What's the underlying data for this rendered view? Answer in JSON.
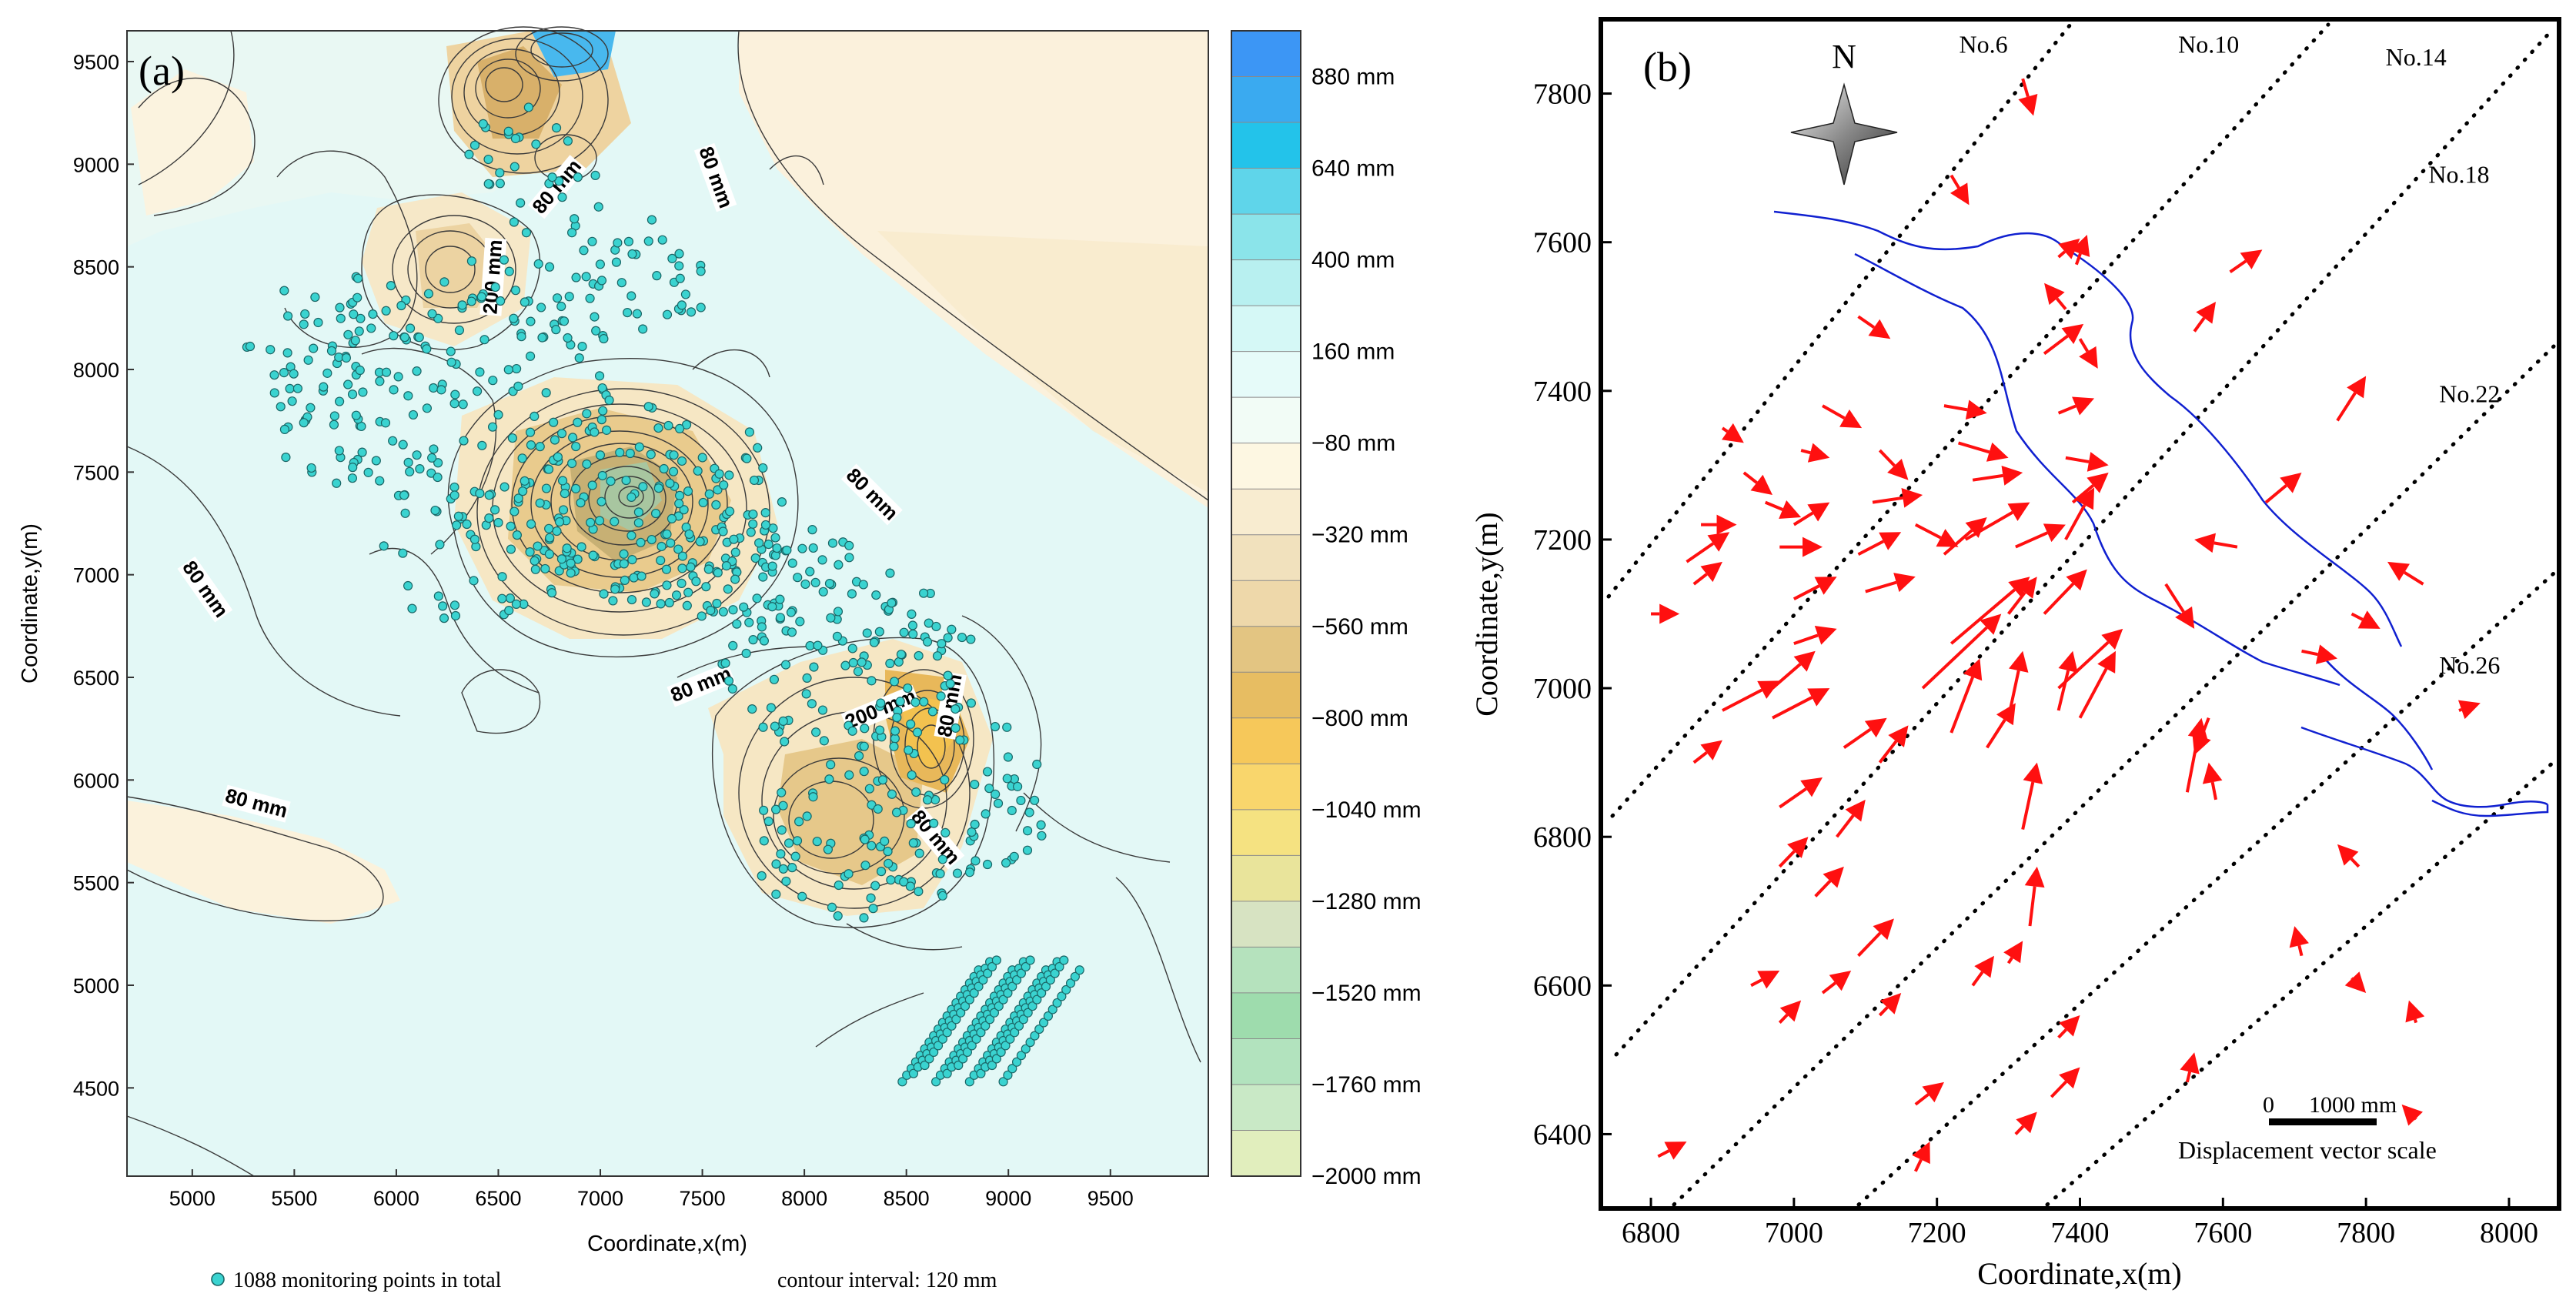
{
  "chart_data": [
    {
      "type": "contour",
      "panel_label": "(a)",
      "xlabel": "Coordinate,x(m)",
      "ylabel": "Coordinate,y(m)",
      "xlim": [
        4680,
        9980
      ],
      "ylim": [
        4070,
        9650
      ],
      "xticks": [
        5000,
        5500,
        6000,
        6500,
        7000,
        7500,
        8000,
        8500,
        9000,
        9500
      ],
      "yticks": [
        4500,
        5000,
        5500,
        6000,
        6500,
        7000,
        7500,
        8000,
        8500,
        9000,
        9500
      ],
      "contour_labels": [
        {
          "text": "80 mm",
          "x": 6800,
          "y": 8880,
          "angle": -50
        },
        {
          "text": "80 mm",
          "x": 7550,
          "y": 8930,
          "angle": 70
        },
        {
          "text": "200 mm",
          "x": 6490,
          "y": 8450,
          "angle": -86
        },
        {
          "text": "80 mm",
          "x": 5050,
          "y": 6920,
          "angle": 55
        },
        {
          "text": "80 mm",
          "x": 8320,
          "y": 7380,
          "angle": 45
        },
        {
          "text": "80 mm",
          "x": 7500,
          "y": 6450,
          "angle": -22
        },
        {
          "text": "200 mm",
          "x": 8380,
          "y": 6330,
          "angle": -22
        },
        {
          "text": "80 mm",
          "x": 8730,
          "y": 6360,
          "angle": -80
        },
        {
          "text": "80 mm",
          "x": 5310,
          "y": 5870,
          "angle": 15
        },
        {
          "text": "80 mm",
          "x": 8630,
          "y": 5710,
          "angle": 50
        }
      ],
      "colorbar": {
        "labels": [
          "880 mm",
          "640 mm",
          "400 mm",
          "160 mm",
          "−80 mm",
          "−320 mm",
          "−560 mm",
          "−800 mm",
          "−1040 mm",
          "−1280 mm",
          "−1520 mm",
          "−1760 mm",
          "−2000 mm"
        ],
        "colors": [
          "#3c96f5",
          "#3aaaf0",
          "#23c3ea",
          "#5fd5ea",
          "#8be4ea",
          "#b8f0f0",
          "#d5f8f6",
          "#e6fbf9",
          "#f2fcf6",
          "#fdf7e2",
          "#f8ecd0",
          "#f1e1bd",
          "#eed8aa",
          "#e3c582",
          "#e7bd62",
          "#f6c85a",
          "#f9d66c",
          "#f5e281",
          "#e9e49b",
          "#d7e3c2",
          "#b5e2bd",
          "#9edcad",
          "#b2e3be",
          "#c9e9c6",
          "#e1eebd"
        ]
      },
      "footer_points_label": "1088 monitoring points in total",
      "footer_interval_label": "contour interval:  120 mm"
    },
    {
      "type": "vector_field",
      "panel_label": "(b)",
      "xlabel": "Coordinate,x(m)",
      "ylabel": "Coordinate,y(m)",
      "xlim": [
        6730,
        8070
      ],
      "ylim": [
        6300,
        7900
      ],
      "xticks": [
        6800,
        7000,
        7200,
        7400,
        7600,
        7800,
        8000
      ],
      "yticks": [
        6400,
        6600,
        6800,
        7000,
        7200,
        7400,
        7600,
        7800
      ],
      "north_label": "N",
      "line_labels": [
        {
          "text": "No.6",
          "x": 7265,
          "y": 7855
        },
        {
          "text": "No.10",
          "x": 7580,
          "y": 7855
        },
        {
          "text": "No.14",
          "x": 7870,
          "y": 7838
        },
        {
          "text": "No.18",
          "x": 7930,
          "y": 7680
        },
        {
          "text": "No.22",
          "x": 7945,
          "y": 7385
        },
        {
          "text": "No.26",
          "x": 7945,
          "y": 7020
        }
      ],
      "scale_bar_label": "0      1000 mm",
      "scale_bar_caption": "Displacement vector scale",
      "vectors": [
        [
          7320,
          7820,
          7335,
          7770
        ],
        [
          7220,
          7690,
          7245,
          7650
        ],
        [
          7370,
          7580,
          7400,
          7605
        ],
        [
          7395,
          7570,
          7410,
          7610
        ],
        [
          7380,
          7510,
          7350,
          7545
        ],
        [
          7610,
          7560,
          7655,
          7590
        ],
        [
          7560,
          7480,
          7590,
          7520
        ],
        [
          7090,
          7500,
          7135,
          7470
        ],
        [
          7350,
          7450,
          7405,
          7490
        ],
        [
          7400,
          7470,
          7425,
          7430
        ],
        [
          7210,
          7380,
          7270,
          7370
        ],
        [
          7370,
          7370,
          7420,
          7390
        ],
        [
          7040,
          7380,
          7095,
          7350
        ],
        [
          7230,
          7330,
          7300,
          7310
        ],
        [
          7380,
          7310,
          7440,
          7300
        ],
        [
          7760,
          7360,
          7800,
          7420
        ],
        [
          6900,
          7350,
          6930,
          7330
        ],
        [
          7010,
          7320,
          7050,
          7310
        ],
        [
          7120,
          7320,
          7160,
          7280
        ],
        [
          7250,
          7280,
          7320,
          7290
        ],
        [
          7390,
          7250,
          7440,
          7290
        ],
        [
          7660,
          7250,
          7710,
          7290
        ],
        [
          6930,
          7290,
          6970,
          7260
        ],
        [
          6960,
          7250,
          7010,
          7230
        ],
        [
          7000,
          7220,
          7050,
          7250
        ],
        [
          7110,
          7250,
          7180,
          7260
        ],
        [
          7170,
          7220,
          7230,
          7190
        ],
        [
          7210,
          7180,
          7270,
          7230
        ],
        [
          7240,
          7200,
          7330,
          7250
        ],
        [
          7380,
          7200,
          7420,
          7270
        ],
        [
          6870,
          7220,
          6920,
          7220
        ],
        [
          6980,
          7190,
          7040,
          7190
        ],
        [
          7090,
          7180,
          7150,
          7210
        ],
        [
          7310,
          7190,
          7380,
          7220
        ],
        [
          7620,
          7190,
          7560,
          7200
        ],
        [
          6850,
          7170,
          6910,
          7210
        ],
        [
          6860,
          7140,
          6900,
          7170
        ],
        [
          7100,
          7130,
          7170,
          7150
        ],
        [
          7300,
          7100,
          7340,
          7150
        ],
        [
          7350,
          7100,
          7410,
          7160
        ],
        [
          7880,
          7140,
          7830,
          7170
        ],
        [
          6800,
          7100,
          6840,
          7100
        ],
        [
          7000,
          7120,
          7060,
          7150
        ],
        [
          7000,
          7060,
          7060,
          7080
        ],
        [
          7220,
          7060,
          7330,
          7150
        ],
        [
          7520,
          7140,
          7560,
          7080
        ],
        [
          7780,
          7100,
          7820,
          7080
        ],
        [
          6970,
          7000,
          7030,
          7050
        ],
        [
          7180,
          7000,
          7290,
          7100
        ],
        [
          7370,
          7000,
          7460,
          7080
        ],
        [
          7710,
          7050,
          7760,
          7040
        ],
        [
          6900,
          6970,
          6980,
          7010
        ],
        [
          6970,
          6960,
          7050,
          7000
        ],
        [
          7220,
          6940,
          7260,
          7040
        ],
        [
          7300,
          6960,
          7320,
          7050
        ],
        [
          7370,
          6970,
          7390,
          7050
        ],
        [
          7400,
          6960,
          7450,
          7050
        ],
        [
          7930,
          6970,
          7960,
          6980
        ],
        [
          6860,
          6900,
          6900,
          6930
        ],
        [
          7070,
          6920,
          7130,
          6960
        ],
        [
          7120,
          6900,
          7160,
          6950
        ],
        [
          7270,
          6920,
          7310,
          6980
        ],
        [
          7580,
          6960,
          7560,
          6910
        ],
        [
          6980,
          6840,
          7040,
          6880
        ],
        [
          7060,
          6800,
          7100,
          6850
        ],
        [
          7320,
          6810,
          7340,
          6900
        ],
        [
          7550,
          6860,
          7570,
          6960
        ],
        [
          7590,
          6850,
          7580,
          6900
        ],
        [
          6980,
          6760,
          7020,
          6800
        ],
        [
          7030,
          6720,
          7070,
          6760
        ],
        [
          7790,
          6760,
          7760,
          6790
        ],
        [
          7330,
          6680,
          7340,
          6760
        ],
        [
          7090,
          6640,
          7140,
          6690
        ],
        [
          7300,
          6630,
          7320,
          6660
        ],
        [
          7710,
          6640,
          7700,
          6680
        ],
        [
          6940,
          6600,
          6980,
          6620
        ],
        [
          7040,
          6590,
          7080,
          6620
        ],
        [
          7250,
          6600,
          7280,
          6640
        ],
        [
          7780,
          6610,
          7800,
          6590
        ],
        [
          6980,
          6550,
          7010,
          6580
        ],
        [
          7120,
          6560,
          7150,
          6590
        ],
        [
          7370,
          6530,
          7400,
          6560
        ],
        [
          7870,
          6550,
          7860,
          6580
        ],
        [
          7360,
          6450,
          7400,
          6490
        ],
        [
          7550,
          6470,
          7560,
          6510
        ],
        [
          7170,
          6440,
          7210,
          6470
        ],
        [
          7310,
          6400,
          7340,
          6430
        ],
        [
          7870,
          6420,
          7850,
          6440
        ],
        [
          6810,
          6370,
          6850,
          6390
        ],
        [
          7170,
          6350,
          7190,
          6390
        ]
      ]
    }
  ]
}
